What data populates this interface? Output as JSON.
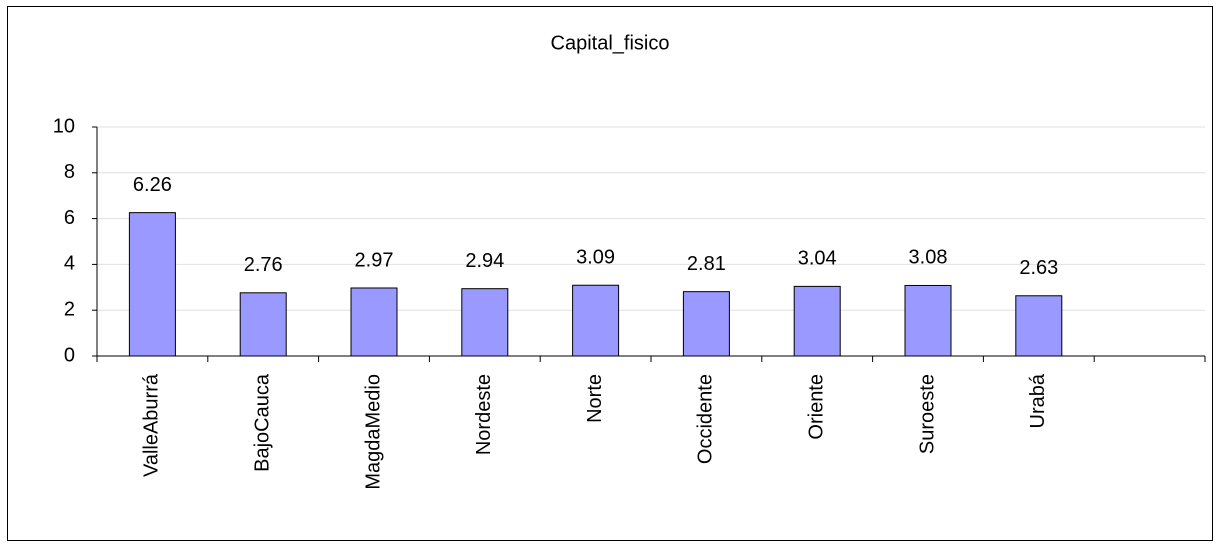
{
  "chart_data": {
    "type": "bar",
    "title": "Capital_fisico",
    "categories": [
      "ValleAburrá",
      "BajoCauca",
      "MagdaMedio",
      "Nordeste",
      "Norte",
      "Occidente",
      "Oriente",
      "Suroeste",
      "Urabá",
      null
    ],
    "values": [
      6.26,
      2.76,
      2.97,
      2.94,
      3.09,
      2.81,
      3.04,
      3.08,
      2.63,
      null
    ],
    "color": "#9999ff",
    "ylim": [
      0,
      10
    ],
    "yticks": [
      0,
      2,
      4,
      6,
      8,
      10
    ],
    "grid": true
  }
}
